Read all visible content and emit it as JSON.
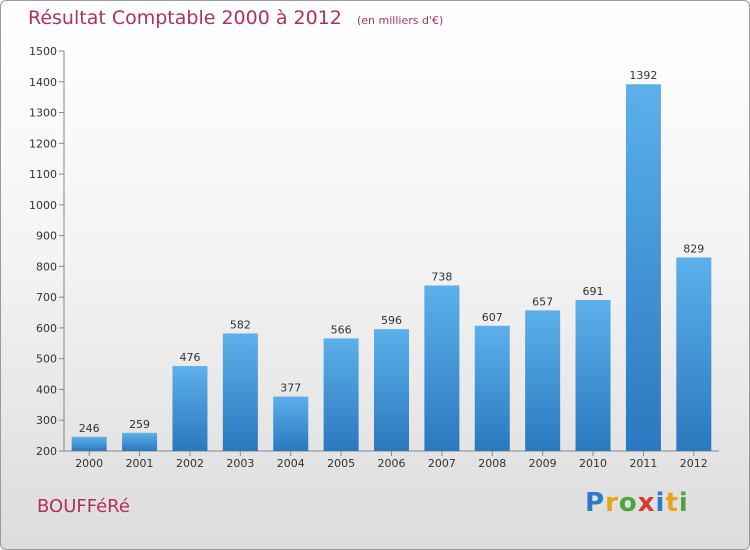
{
  "header": {
    "title": "Résultat Comptable 2000 à 2012",
    "subtitle": "(en milliers d'€)"
  },
  "footer": {
    "commune": "BOUFFéRé",
    "brand": "Proxiti",
    "brand_letters": [
      "P",
      "r",
      "o",
      "x",
      "i",
      "t",
      "i"
    ],
    "brand_colors": [
      "#2b7bc8",
      "#e8a317",
      "#4aa83b",
      "#d93a2b",
      "#2b7bc8",
      "#e8a317",
      "#4aa83b"
    ]
  },
  "chart_data": {
    "type": "bar",
    "title": "Résultat Comptable 2000 à 2012",
    "subtitle": "(en milliers d'€)",
    "xlabel": "",
    "ylabel": "",
    "categories": [
      "2000",
      "2001",
      "2002",
      "2003",
      "2004",
      "2005",
      "2006",
      "2007",
      "2008",
      "2009",
      "2010",
      "2011",
      "2012"
    ],
    "values": [
      246,
      259,
      476,
      582,
      377,
      566,
      596,
      738,
      607,
      657,
      691,
      1392,
      829
    ],
    "ylim": [
      200,
      1500
    ],
    "yticks": [
      200,
      300,
      400,
      500,
      600,
      700,
      800,
      900,
      1000,
      1100,
      1200,
      1300,
      1400,
      1500
    ],
    "grid": false,
    "bar_color": "#3a8fd8"
  }
}
